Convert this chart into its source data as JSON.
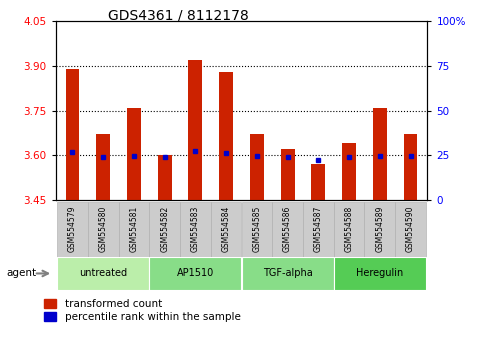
{
  "title": "GDS4361 / 8112178",
  "samples": [
    "GSM554579",
    "GSM554580",
    "GSM554581",
    "GSM554582",
    "GSM554583",
    "GSM554584",
    "GSM554585",
    "GSM554586",
    "GSM554587",
    "GSM554588",
    "GSM554589",
    "GSM554590"
  ],
  "group_configs": [
    {
      "label": "untreated",
      "start": 0,
      "end": 2,
      "color": "#bbeeaa"
    },
    {
      "label": "AP1510",
      "start": 3,
      "end": 5,
      "color": "#88dd88"
    },
    {
      "label": "TGF-alpha",
      "start": 6,
      "end": 8,
      "color": "#88dd88"
    },
    {
      "label": "Heregulin",
      "start": 9,
      "end": 11,
      "color": "#55cc55"
    }
  ],
  "transformed_count": [
    3.89,
    3.67,
    3.76,
    3.6,
    3.92,
    3.88,
    3.67,
    3.62,
    3.57,
    3.64,
    3.76,
    3.67
  ],
  "percentile_rank": [
    3.611,
    3.596,
    3.599,
    3.596,
    3.614,
    3.607,
    3.598,
    3.594,
    3.583,
    3.596,
    3.598,
    3.597
  ],
  "ylim_left": [
    3.45,
    4.05
  ],
  "yticks_left": [
    3.45,
    3.6,
    3.75,
    3.9,
    4.05
  ],
  "yticks_right": [
    0,
    25,
    50,
    75,
    100
  ],
  "bar_color": "#cc2200",
  "percentile_color": "#0000cc",
  "bar_bottom": 3.45,
  "legend_items": [
    "transformed count",
    "percentile rank within the sample"
  ],
  "agent_label": "agent"
}
